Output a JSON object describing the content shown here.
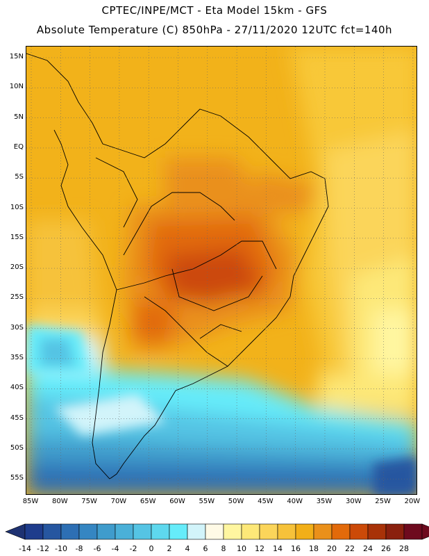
{
  "header": {
    "title_line1": "CPTEC/INPE/MCT -  Eta Model 15km - GFS",
    "title_line2": "Absolute Temperature (C) 850hPa - 27/11/2020 12UTC fct=140h"
  },
  "map": {
    "lat_labels": [
      "15N",
      "10N",
      "5N",
      "EQ",
      "5S",
      "10S",
      "15S",
      "20S",
      "25S",
      "30S",
      "35S",
      "40S",
      "45S",
      "50S",
      "55S"
    ],
    "lon_labels": [
      "85W",
      "80W",
      "75W",
      "70W",
      "65W",
      "60W",
      "55W",
      "50W",
      "45W",
      "40W",
      "35W",
      "30W",
      "25W",
      "20W"
    ]
  },
  "colorbar": {
    "labels": [
      "-14",
      "-12",
      "-10",
      "-8",
      "-6",
      "-4",
      "-2",
      "0",
      "2",
      "4",
      "6",
      "8",
      "10",
      "12",
      "14",
      "16",
      "18",
      "20",
      "22",
      "24",
      "26",
      "28"
    ],
    "colors": [
      "#1e3c8c",
      "#2656a0",
      "#2d6fb4",
      "#3586c2",
      "#3f9ccc",
      "#4ab0d8",
      "#55c4e4",
      "#5ed8ee",
      "#66ecfa",
      "#d2f4fa",
      "#fffae6",
      "#fff6a0",
      "#fde878",
      "#fbd55a",
      "#f6c23a",
      "#f2af18",
      "#ea901a",
      "#e26a0a",
      "#cc4a08",
      "#a83208",
      "#8a200e",
      "#6e0a1e"
    ],
    "min_arrow_color": "#1e3272",
    "max_arrow_color": "#6e0a1e"
  }
}
